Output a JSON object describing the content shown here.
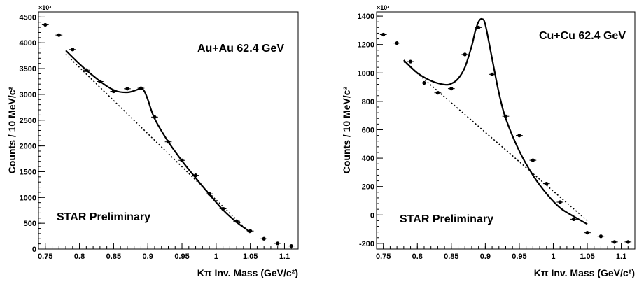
{
  "chart_data": [
    {
      "type": "scatter",
      "xlabel": "Kπ Inv. Mass (GeV/c²)",
      "ylabel": "Counts / 10 MeV/c²",
      "y_multiplier": "×10³",
      "system_label": "Au+Au 62.4 GeV",
      "annotation": "STAR Preliminary",
      "xlim": [
        0.74,
        1.12
      ],
      "ylim": [
        0,
        4600
      ],
      "x_ticks": [
        "0.75",
        "0.8",
        "0.85",
        "0.9",
        "0.95",
        "1",
        "1.05",
        "1.1"
      ],
      "x_tick_values": [
        0.75,
        0.8,
        0.85,
        0.9,
        0.95,
        1.0,
        1.05,
        1.1
      ],
      "y_ticks": [
        "0",
        "500",
        "1000",
        "1500",
        "2000",
        "2500",
        "3000",
        "3500",
        "4000",
        "4500"
      ],
      "y_tick_values": [
        0,
        500,
        1000,
        1500,
        2000,
        2500,
        3000,
        3500,
        4000,
        4500
      ],
      "x": [
        0.75,
        0.77,
        0.79,
        0.81,
        0.83,
        0.85,
        0.87,
        0.89,
        0.91,
        0.93,
        0.95,
        0.97,
        0.99,
        1.01,
        1.03,
        1.05,
        1.07,
        1.09,
        1.11
      ],
      "y": [
        4350,
        4150,
        3870,
        3470,
        3250,
        3060,
        3110,
        3120,
        2560,
        2080,
        1720,
        1430,
        1070,
        780,
        540,
        350,
        200,
        110,
        60
      ],
      "fit_curve": {
        "x": [
          0.78,
          0.8,
          0.82,
          0.84,
          0.855,
          0.87,
          0.88,
          0.89,
          0.895,
          0.9,
          0.91,
          0.93,
          0.95,
          0.97,
          0.99,
          1.01,
          1.03,
          1.05
        ],
        "y": [
          3850,
          3590,
          3360,
          3160,
          3060,
          3040,
          3070,
          3110,
          3060,
          2900,
          2530,
          2080,
          1710,
          1380,
          1060,
          760,
          520,
          330
        ]
      },
      "background_line": {
        "x": [
          0.78,
          1.05
        ],
        "y": [
          3780,
          310
        ]
      }
    },
    {
      "type": "scatter",
      "xlabel": "Kπ Inv. Mass (GeV/c²)",
      "ylabel": "Counts / 10 MeV/c²",
      "y_multiplier": "×10³",
      "system_label": "Cu+Cu 62.4 GeV",
      "annotation": "STAR Preliminary",
      "xlim": [
        0.74,
        1.12
      ],
      "ylim": [
        -240,
        1430
      ],
      "x_ticks": [
        "0.75",
        "0.8",
        "0.85",
        "0.9",
        "0.95",
        "1",
        "1.05",
        "1.1"
      ],
      "x_tick_values": [
        0.75,
        0.8,
        0.85,
        0.9,
        0.95,
        1.0,
        1.05,
        1.1
      ],
      "y_ticks": [
        "-200",
        "0",
        "200",
        "400",
        "600",
        "800",
        "1000",
        "1200",
        "1400"
      ],
      "y_tick_values": [
        -200,
        0,
        200,
        400,
        600,
        800,
        1000,
        1200,
        1400
      ],
      "x": [
        0.75,
        0.77,
        0.79,
        0.81,
        0.83,
        0.85,
        0.87,
        0.89,
        0.91,
        0.93,
        0.95,
        0.97,
        0.99,
        1.01,
        1.03,
        1.05,
        1.07,
        1.09,
        1.11
      ],
      "y": [
        1270,
        1210,
        1080,
        930,
        860,
        890,
        1130,
        1320,
        990,
        695,
        560,
        385,
        220,
        90,
        -30,
        -125,
        -150,
        -190,
        -190
      ],
      "fit_curve": {
        "x": [
          0.78,
          0.8,
          0.82,
          0.84,
          0.85,
          0.86,
          0.87,
          0.88,
          0.885,
          0.89,
          0.895,
          0.9,
          0.91,
          0.92,
          0.93,
          0.95,
          0.97,
          0.99,
          1.01,
          1.03,
          1.05
        ],
        "y": [
          1090,
          1000,
          945,
          918,
          925,
          960,
          1040,
          1190,
          1290,
          1360,
          1380,
          1340,
          1100,
          860,
          680,
          450,
          280,
          150,
          50,
          -10,
          -65
        ]
      },
      "background_line": {
        "x": [
          0.78,
          1.05
        ],
        "y": [
          1080,
          -40
        ]
      }
    }
  ]
}
